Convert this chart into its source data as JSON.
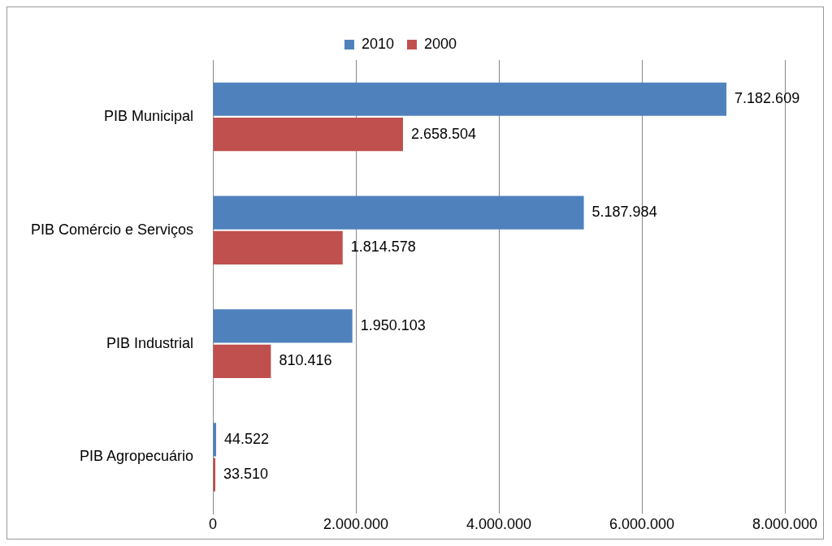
{
  "chart_data": {
    "type": "bar",
    "orientation": "horizontal",
    "categories": [
      "PIB Municipal",
      "PIB Comércio e Serviços",
      "PIB Industrial",
      "PIB Agropecuário"
    ],
    "series": [
      {
        "name": "2010",
        "color": "#4f81bd",
        "values": [
          7182609,
          5187984,
          1950103,
          44522
        ],
        "value_labels": [
          "7.182.609",
          "5.187.984",
          "1.950.103",
          "44.522"
        ]
      },
      {
        "name": "2000",
        "color": "#c0504d",
        "values": [
          2658504,
          1814578,
          810416,
          33510
        ],
        "value_labels": [
          "2.658.504",
          "1.814.578",
          "810.416",
          "33.510"
        ]
      }
    ],
    "xlim": [
      0,
      8000000
    ],
    "xticks": [
      0,
      {
        "value": 2000000,
        "label": "2.000.000"
      },
      {
        "value": 4000000,
        "label": "4.000.000"
      },
      {
        "value": 6000000,
        "label": "6.000.000"
      },
      {
        "value": 8000000,
        "label": "8.000.000"
      }
    ],
    "grid": "x",
    "legend": "top"
  }
}
